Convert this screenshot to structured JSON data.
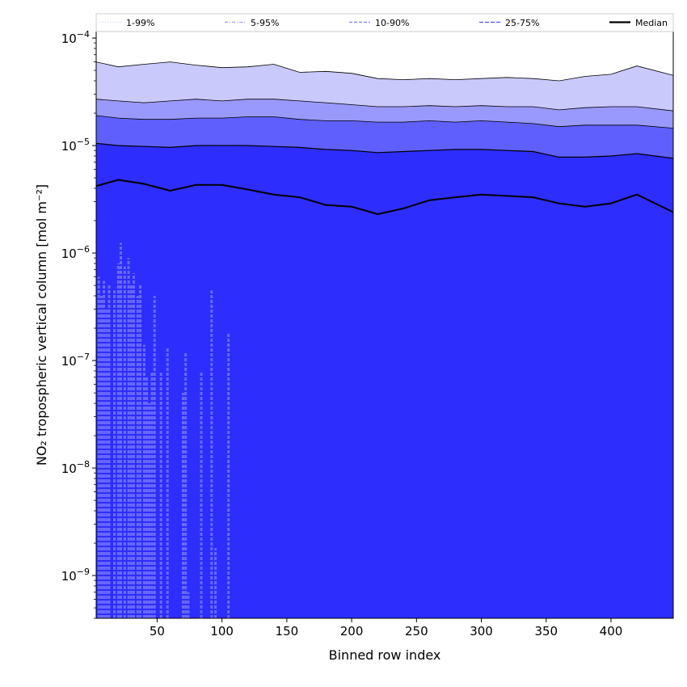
{
  "chart_data": {
    "type": "area",
    "xlabel": "Binned row index",
    "ylabel": "NO₂ tropospheric vertical column [mol m⁻²]",
    "xlim": [
      3,
      448
    ],
    "ylim": [
      4e-10,
      0.000115
    ],
    "yscale": "log",
    "grid": false,
    "legend_position": "top",
    "x_ticks": [
      50,
      100,
      150,
      200,
      250,
      300,
      350,
      400
    ],
    "x_tick_labels": [
      "50",
      "100",
      "150",
      "200",
      "250",
      "300",
      "350",
      "400"
    ],
    "y_ticks": [
      1e-09,
      1e-08,
      1e-07,
      1e-06,
      1e-05,
      0.0001
    ],
    "y_tick_labels": [
      {
        "base": "10",
        "exp": "−9"
      },
      {
        "base": "10",
        "exp": "−8"
      },
      {
        "base": "10",
        "exp": "−7"
      },
      {
        "base": "10",
        "exp": "−6"
      },
      {
        "base": "10",
        "exp": "−5"
      },
      {
        "base": "10",
        "exp": "−4"
      }
    ],
    "legend": [
      {
        "label": "1-99%",
        "style": "dotted",
        "color": "#d0d0ff"
      },
      {
        "label": "5-95%",
        "style": "dashdot",
        "color": "#a0a0ff"
      },
      {
        "label": "10-90%",
        "style": "dashed",
        "color": "#8080ff"
      },
      {
        "label": "25-75%",
        "style": "dashdash",
        "color": "#5050ff"
      },
      {
        "label": "Median",
        "style": "solid",
        "color": "#000000"
      }
    ],
    "band_colors": [
      "#c9c9fc",
      "#9999fb",
      "#5f5ffd",
      "#2d2dfe"
    ],
    "x": [
      3,
      20,
      40,
      60,
      80,
      100,
      120,
      140,
      160,
      180,
      200,
      220,
      240,
      260,
      280,
      300,
      320,
      340,
      360,
      380,
      400,
      420,
      448
    ],
    "series": [
      {
        "name": "99%",
        "values": [
          6e-05,
          5.4e-05,
          5.7e-05,
          6e-05,
          5.6e-05,
          5.3e-05,
          5.4e-05,
          5.7e-05,
          4.8e-05,
          4.9e-05,
          4.7e-05,
          4.2e-05,
          4.1e-05,
          4.2e-05,
          4.1e-05,
          4.2e-05,
          4.3e-05,
          4.2e-05,
          4e-05,
          4.4e-05,
          4.6e-05,
          5.5e-05,
          4.5e-05
        ]
      },
      {
        "name": "95%",
        "values": [
          2.7e-05,
          2.6e-05,
          2.5e-05,
          2.6e-05,
          2.7e-05,
          2.6e-05,
          2.7e-05,
          2.7e-05,
          2.6e-05,
          2.5e-05,
          2.4e-05,
          2.3e-05,
          2.3e-05,
          2.35e-05,
          2.3e-05,
          2.35e-05,
          2.3e-05,
          2.3e-05,
          2.15e-05,
          2.25e-05,
          2.3e-05,
          2.3e-05,
          2.1e-05
        ]
      },
      {
        "name": "90%",
        "values": [
          1.9e-05,
          1.8e-05,
          1.75e-05,
          1.75e-05,
          1.8e-05,
          1.8e-05,
          1.85e-05,
          1.85e-05,
          1.75e-05,
          1.7e-05,
          1.7e-05,
          1.65e-05,
          1.65e-05,
          1.7e-05,
          1.65e-05,
          1.7e-05,
          1.65e-05,
          1.6e-05,
          1.5e-05,
          1.55e-05,
          1.55e-05,
          1.55e-05,
          1.45e-05
        ]
      },
      {
        "name": "75%",
        "values": [
          1.05e-05,
          1e-05,
          9.8e-06,
          9.6e-06,
          1e-05,
          1e-05,
          1e-05,
          9.8e-06,
          9.6e-06,
          9.2e-06,
          9e-06,
          8.6e-06,
          8.8e-06,
          9e-06,
          9.2e-06,
          9.2e-06,
          9e-06,
          8.8e-06,
          7.8e-06,
          7.8e-06,
          8e-06,
          8.4e-06,
          7.6e-06
        ]
      },
      {
        "name": "Median",
        "values": [
          4.2e-06,
          4.8e-06,
          4.4e-06,
          3.8e-06,
          4.3e-06,
          4.3e-06,
          3.9e-06,
          3.5e-06,
          3.3e-06,
          2.8e-06,
          2.7e-06,
          2.3e-06,
          2.6e-06,
          3.1e-06,
          3.3e-06,
          3.5e-06,
          3.4e-06,
          3.3e-06,
          2.9e-06,
          2.7e-06,
          2.9e-06,
          3.5e-06,
          2.4e-06
        ]
      }
    ],
    "low_percentile_spikes": [
      {
        "x": 5,
        "y": 6e-07
      },
      {
        "x": 7,
        "y": 4e-07
      },
      {
        "x": 9,
        "y": 5.5e-07
      },
      {
        "x": 11,
        "y": 3e-07
      },
      {
        "x": 13,
        "y": 5e-07
      },
      {
        "x": 17,
        "y": 4.5e-07
      },
      {
        "x": 20,
        "y": 8e-07
      },
      {
        "x": 22,
        "y": 1.25e-06
      },
      {
        "x": 25,
        "y": 7.5e-07
      },
      {
        "x": 28,
        "y": 9e-07
      },
      {
        "x": 30,
        "y": 5e-07
      },
      {
        "x": 32,
        "y": 6.5e-07
      },
      {
        "x": 35,
        "y": 4e-07
      },
      {
        "x": 37,
        "y": 5e-07
      },
      {
        "x": 40,
        "y": 1.4e-07
      },
      {
        "x": 42,
        "y": 7e-08
      },
      {
        "x": 44,
        "y": 4e-08
      },
      {
        "x": 46,
        "y": 8e-08
      },
      {
        "x": 48,
        "y": 4e-07
      },
      {
        "x": 53,
        "y": 8e-08
      },
      {
        "x": 58,
        "y": 1.3e-07
      },
      {
        "x": 70,
        "y": 5e-08
      },
      {
        "x": 72,
        "y": 1.2e-07
      },
      {
        "x": 74,
        "y": 7e-10
      },
      {
        "x": 84,
        "y": 8e-08
      },
      {
        "x": 92,
        "y": 4.5e-07
      },
      {
        "x": 95,
        "y": 1.8e-09
      },
      {
        "x": 105,
        "y": 1.8e-07
      }
    ]
  }
}
